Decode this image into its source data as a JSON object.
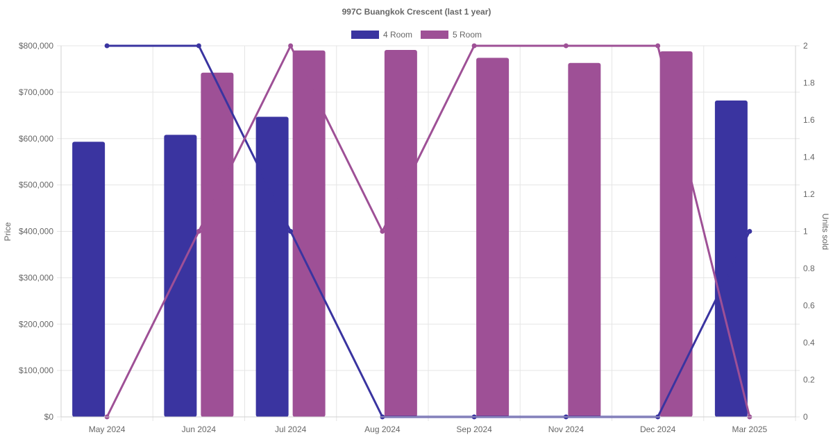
{
  "chart_data": {
    "type": "bar",
    "title": "997C Buangkok Crescent (last 1 year)",
    "categories": [
      "May 2024",
      "Jun 2024",
      "Jul 2024",
      "Aug 2024",
      "Sep 2024",
      "Nov 2024",
      "Dec 2024",
      "Mar 2025"
    ],
    "y_left": {
      "label": "Price",
      "min": 0,
      "max": 800000,
      "ticks": [
        "$0",
        "$100,000",
        "$200,000",
        "$300,000",
        "$400,000",
        "$500,000",
        "$600,000",
        "$700,000",
        "$800,000"
      ]
    },
    "y_right": {
      "label": "Units sold",
      "min": 0,
      "max": 2,
      "ticks": [
        "0",
        "0.2",
        "0.4",
        "0.6",
        "0.8",
        "1",
        "1.2",
        "1.4",
        "1.6",
        "1.8",
        "2"
      ]
    },
    "legend": {
      "position": "top"
    },
    "series": [
      {
        "name": "4 Room",
        "color": "#3a34a0",
        "price": [
          593000,
          608000,
          647000,
          null,
          null,
          null,
          null,
          682000
        ],
        "units": [
          2,
          2,
          1,
          0,
          0,
          0,
          0,
          1
        ]
      },
      {
        "name": "5 Room",
        "color": "#9e5096",
        "price": [
          null,
          742000,
          790000,
          791000,
          774000,
          763000,
          788000,
          null
        ],
        "units": [
          0,
          1,
          2,
          1,
          2,
          2,
          2,
          0
        ]
      }
    ],
    "grid": true
  }
}
